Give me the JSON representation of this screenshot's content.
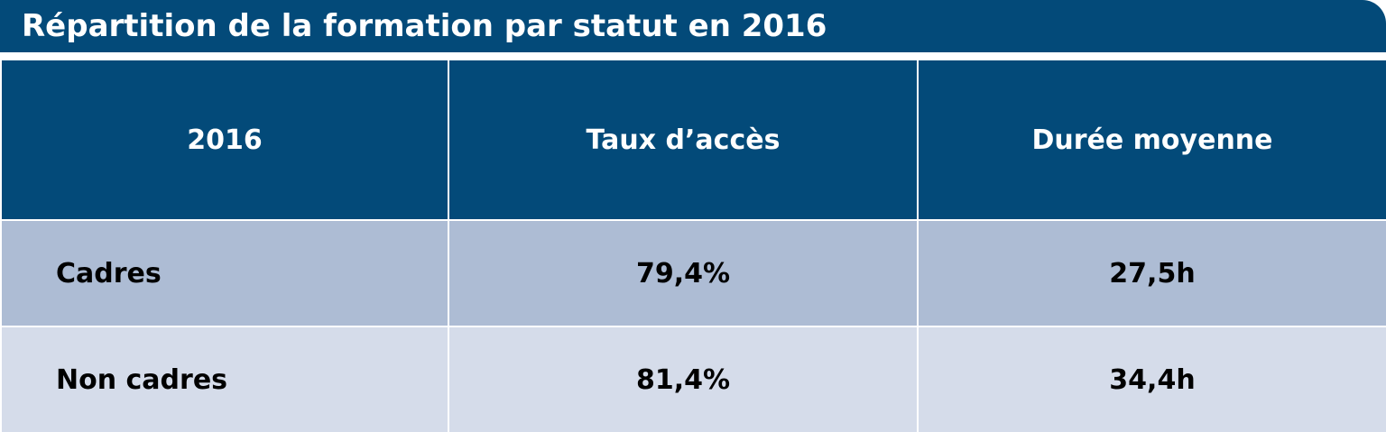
{
  "title": "Répartition de la formation par statut en 2016",
  "colors": {
    "header_bg": "#034a79",
    "row_dark": "#adbcd4",
    "row_light": "#d5dcea",
    "header_text": "#ffffff"
  },
  "chart_data": {
    "type": "table",
    "title": "Répartition de la formation par statut en 2016",
    "columns": [
      "2016",
      "Taux d’accès",
      "Durée moyenne"
    ],
    "rows": [
      {
        "label": "Cadres",
        "taux": "79,4%",
        "duree": "27,5h"
      },
      {
        "label": "Non cadres",
        "taux": "81,4%",
        "duree": "34,4h"
      }
    ],
    "series": [
      {
        "name": "Taux d’accès",
        "values": [
          79.4,
          81.4
        ],
        "unit": "%"
      },
      {
        "name": "Durée moyenne",
        "values": [
          27.5,
          34.4
        ],
        "unit": "h"
      }
    ],
    "categories": [
      "Cadres",
      "Non cadres"
    ]
  }
}
